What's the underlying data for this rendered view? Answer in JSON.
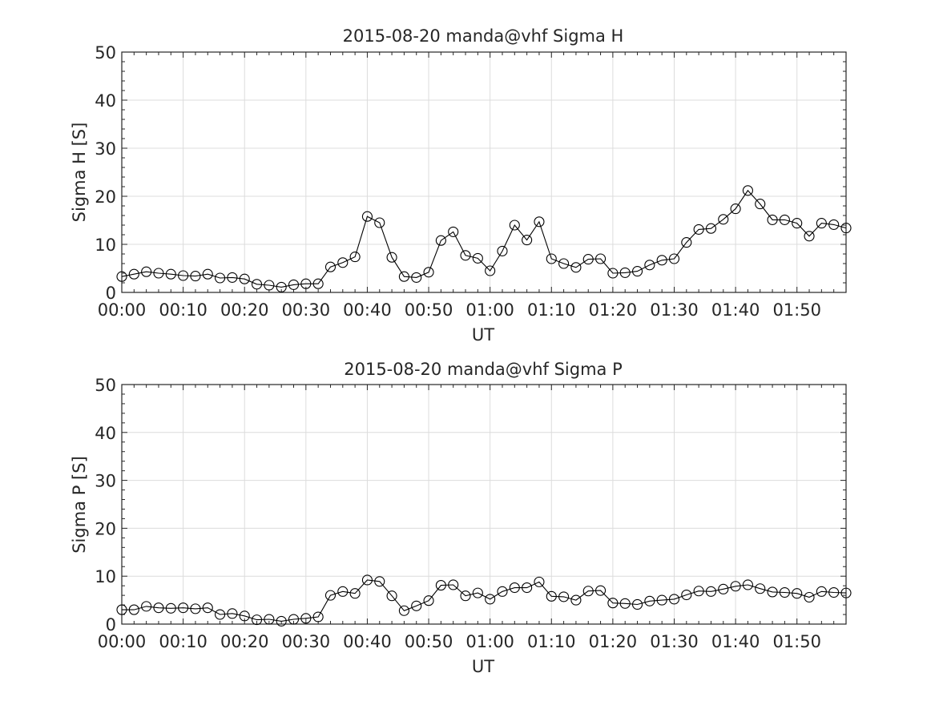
{
  "chart_data": [
    {
      "type": "line",
      "title": "2015-08-20  manda@vhf Sigma H",
      "xlabel": "UT",
      "ylabel": "Sigma H [S]",
      "x_ticks": [
        "00:00",
        "00:10",
        "00:20",
        "00:30",
        "00:40",
        "00:50",
        "01:00",
        "01:10",
        "01:20",
        "01:30",
        "01:40",
        "01:50"
      ],
      "xlim_minutes": [
        0,
        118
      ],
      "ylim": [
        0,
        50
      ],
      "y_ticks": [
        0,
        10,
        20,
        30,
        40,
        50
      ],
      "grid": true,
      "marker": "circle",
      "color": "#000000",
      "x_minutes": [
        0,
        2,
        4,
        6,
        8,
        10,
        12,
        14,
        16,
        18,
        20,
        22,
        24,
        26,
        28,
        30,
        32,
        34,
        36,
        38,
        40,
        42,
        44,
        46,
        48,
        50,
        52,
        54,
        56,
        58,
        60,
        62,
        64,
        66,
        68,
        70,
        72,
        74,
        76,
        78,
        80,
        82,
        84,
        86,
        88,
        90,
        92,
        94,
        96,
        98,
        100,
        102,
        104,
        106,
        108,
        110,
        112,
        114,
        116,
        118
      ],
      "values": [
        3.3,
        3.8,
        4.3,
        4.0,
        3.8,
        3.5,
        3.4,
        3.8,
        3.0,
        3.1,
        2.8,
        1.7,
        1.5,
        1.1,
        1.6,
        1.8,
        1.8,
        5.3,
        6.2,
        7.4,
        15.8,
        14.5,
        7.3,
        3.3,
        3.1,
        4.2,
        10.8,
        12.6,
        7.7,
        7.1,
        4.5,
        8.6,
        14.0,
        10.9,
        14.7,
        7.0,
        6.0,
        5.2,
        6.9,
        7.0,
        4.0,
        4.1,
        4.4,
        5.7,
        6.7,
        7.0,
        10.4,
        13.1,
        13.3,
        15.2,
        17.4,
        21.2,
        18.4,
        15.1,
        15.1,
        14.4,
        11.7,
        14.4,
        14.1,
        13.4
      ]
    },
    {
      "type": "line",
      "title": "2015-08-20  manda@vhf Sigma P",
      "xlabel": "UT",
      "ylabel": "Sigma P [S]",
      "x_ticks": [
        "00:00",
        "00:10",
        "00:20",
        "00:30",
        "00:40",
        "00:50",
        "01:00",
        "01:10",
        "01:20",
        "01:30",
        "01:40",
        "01:50"
      ],
      "xlim_minutes": [
        0,
        118
      ],
      "ylim": [
        0,
        50
      ],
      "y_ticks": [
        0,
        10,
        20,
        30,
        40,
        50
      ],
      "grid": true,
      "marker": "circle",
      "color": "#000000",
      "x_minutes": [
        0,
        2,
        4,
        6,
        8,
        10,
        12,
        14,
        16,
        18,
        20,
        22,
        24,
        26,
        28,
        30,
        32,
        34,
        36,
        38,
        40,
        42,
        44,
        46,
        48,
        50,
        52,
        54,
        56,
        58,
        60,
        62,
        64,
        66,
        68,
        70,
        72,
        74,
        76,
        78,
        80,
        82,
        84,
        86,
        88,
        90,
        92,
        94,
        96,
        98,
        100,
        102,
        104,
        106,
        108,
        110,
        112,
        114,
        116,
        118
      ],
      "values": [
        3.0,
        3.0,
        3.7,
        3.4,
        3.3,
        3.4,
        3.2,
        3.4,
        2.0,
        2.2,
        1.7,
        0.9,
        1.0,
        0.6,
        1.0,
        1.2,
        1.5,
        6.0,
        6.8,
        6.4,
        9.2,
        8.9,
        5.9,
        2.8,
        3.8,
        4.9,
        8.1,
        8.2,
        5.9,
        6.5,
        5.2,
        6.8,
        7.6,
        7.6,
        8.8,
        5.8,
        5.7,
        5.0,
        6.9,
        7.0,
        4.4,
        4.3,
        4.1,
        4.8,
        5.0,
        5.2,
        6.1,
        6.9,
        6.8,
        7.3,
        7.9,
        8.2,
        7.4,
        6.7,
        6.6,
        6.4,
        5.6,
        6.8,
        6.6,
        6.5
      ]
    }
  ]
}
